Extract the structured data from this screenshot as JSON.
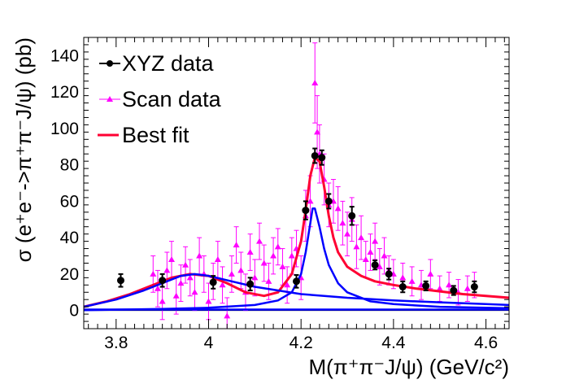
{
  "chart_data": {
    "type": "scatter",
    "title": "",
    "xlabel": "M(π⁺π⁻J/ψ) (GeV/c²)",
    "ylabel": "σ (e⁺e⁻->π⁺π⁻J/ψ) (pb)",
    "xlim": [
      3.73,
      4.65
    ],
    "ylim": [
      -10,
      150
    ],
    "x_ticks": [
      "3.8",
      "4",
      "4.2",
      "4.4",
      "4.6"
    ],
    "y_ticks": [
      "0",
      "20",
      "40",
      "60",
      "80",
      "100",
      "120",
      "140"
    ],
    "legend": {
      "placement": "top-left",
      "entries": [
        "XYZ data",
        "Scan data",
        "Best fit"
      ]
    },
    "colors": {
      "xyz": "#000000",
      "scan": "#ff00ff",
      "best_fit": "#ff0033",
      "components": "#0000ff",
      "background": "#0000ff"
    },
    "series": [
      {
        "name": "XYZ data",
        "marker": "circle",
        "x": [
          3.81,
          3.9,
          4.01,
          4.09,
          4.19,
          4.21,
          4.23,
          4.245,
          4.26,
          4.31,
          4.36,
          4.39,
          4.42,
          4.47,
          4.53,
          4.575
        ],
        "y": [
          16.5,
          16.5,
          15.5,
          14.5,
          16.0,
          55.0,
          85.0,
          84.0,
          60.0,
          52.0,
          25.0,
          20.0,
          13.0,
          13.5,
          11.0,
          13.0
        ],
        "err": [
          3.5,
          3.5,
          3.5,
          3.5,
          3.5,
          5.0,
          4.0,
          4.0,
          4.0,
          5.0,
          2.5,
          3.0,
          3.0,
          2.5,
          2.5,
          3.0
        ]
      },
      {
        "name": "Scan data",
        "marker": "triangle",
        "x": [
          3.88,
          3.89,
          3.9,
          3.91,
          3.92,
          3.93,
          3.94,
          3.95,
          3.96,
          3.97,
          3.98,
          3.99,
          4.0,
          4.01,
          4.02,
          4.03,
          4.04,
          4.05,
          4.06,
          4.07,
          4.08,
          4.09,
          4.1,
          4.11,
          4.12,
          4.13,
          4.14,
          4.15,
          4.16,
          4.17,
          4.18,
          4.19,
          4.2,
          4.21,
          4.22,
          4.23,
          4.235,
          4.24,
          4.25,
          4.26,
          4.27,
          4.28,
          4.29,
          4.3,
          4.31,
          4.32,
          4.33,
          4.34,
          4.35,
          4.36,
          4.37,
          4.38,
          4.39,
          4.4,
          4.42,
          4.44,
          4.46,
          4.48,
          4.5,
          4.52,
          4.54,
          4.56,
          4.575
        ],
        "y": [
          20,
          12,
          5,
          22,
          28,
          8,
          15,
          25,
          18,
          10,
          30,
          20,
          5,
          16,
          28,
          14,
          -3,
          20,
          36,
          22,
          10,
          32,
          18,
          38,
          26,
          16,
          30,
          35,
          24,
          14,
          30,
          34,
          18,
          52,
          60,
          125,
          98,
          86,
          72,
          58,
          60,
          56,
          48,
          42,
          50,
          35,
          40,
          28,
          32,
          38,
          24,
          30,
          22,
          20,
          18,
          16,
          14,
          20,
          12,
          14,
          10,
          12,
          14
        ],
        "err": [
          10,
          10,
          10,
          10,
          10,
          10,
          10,
          10,
          10,
          10,
          10,
          10,
          10,
          10,
          10,
          10,
          10,
          10,
          10,
          10,
          10,
          10,
          10,
          10,
          10,
          10,
          10,
          10,
          10,
          10,
          10,
          10,
          12,
          14,
          14,
          22,
          20,
          16,
          14,
          12,
          12,
          12,
          12,
          12,
          12,
          12,
          12,
          10,
          10,
          10,
          10,
          10,
          8,
          8,
          8,
          8,
          8,
          8,
          7,
          7,
          7,
          7,
          7
        ]
      },
      {
        "name": "Best fit",
        "line": true,
        "x": [
          3.73,
          3.78,
          3.83,
          3.88,
          3.92,
          3.96,
          4.0,
          4.04,
          4.08,
          4.12,
          4.15,
          4.18,
          4.2,
          4.21,
          4.22,
          4.23,
          4.24,
          4.25,
          4.26,
          4.27,
          4.28,
          4.3,
          4.33,
          4.36,
          4.4,
          4.45,
          4.5,
          4.55,
          4.6,
          4.65
        ],
        "y": [
          2,
          5,
          9,
          14,
          18,
          20,
          19,
          15,
          10,
          8,
          10,
          20,
          38,
          55,
          74,
          84,
          82,
          68,
          52,
          40,
          32,
          24,
          19,
          16,
          14,
          12,
          10.5,
          9,
          8,
          7
        ]
      },
      {
        "name": "",
        "line": true,
        "x": [
          3.73,
          3.8,
          3.86,
          3.9,
          3.94,
          3.97,
          4.0,
          4.05,
          4.1,
          4.15,
          4.2,
          4.25,
          4.3,
          4.4,
          4.5,
          4.6,
          4.65
        ],
        "y": [
          2,
          6,
          11,
          15,
          19,
          20,
          19,
          16,
          13,
          11,
          9,
          8,
          7,
          5.5,
          4.5,
          3.5,
          3
        ]
      },
      {
        "name": "",
        "line": true,
        "x": [
          3.73,
          3.9,
          4.0,
          4.1,
          4.15,
          4.18,
          4.2,
          4.21,
          4.22,
          4.225,
          4.23,
          4.24,
          4.25,
          4.26,
          4.28,
          4.3,
          4.35,
          4.4,
          4.5,
          4.6,
          4.65
        ],
        "y": [
          0.2,
          0.8,
          1.5,
          3,
          5.5,
          10,
          20,
          32,
          48,
          56,
          56,
          46,
          34,
          25,
          15,
          10,
          5,
          3.5,
          2,
          1.5,
          1.2
        ]
      },
      {
        "name": "",
        "line": true,
        "x": [
          3.73,
          4.65
        ],
        "y": [
          0.5,
          0.5
        ]
      }
    ]
  }
}
